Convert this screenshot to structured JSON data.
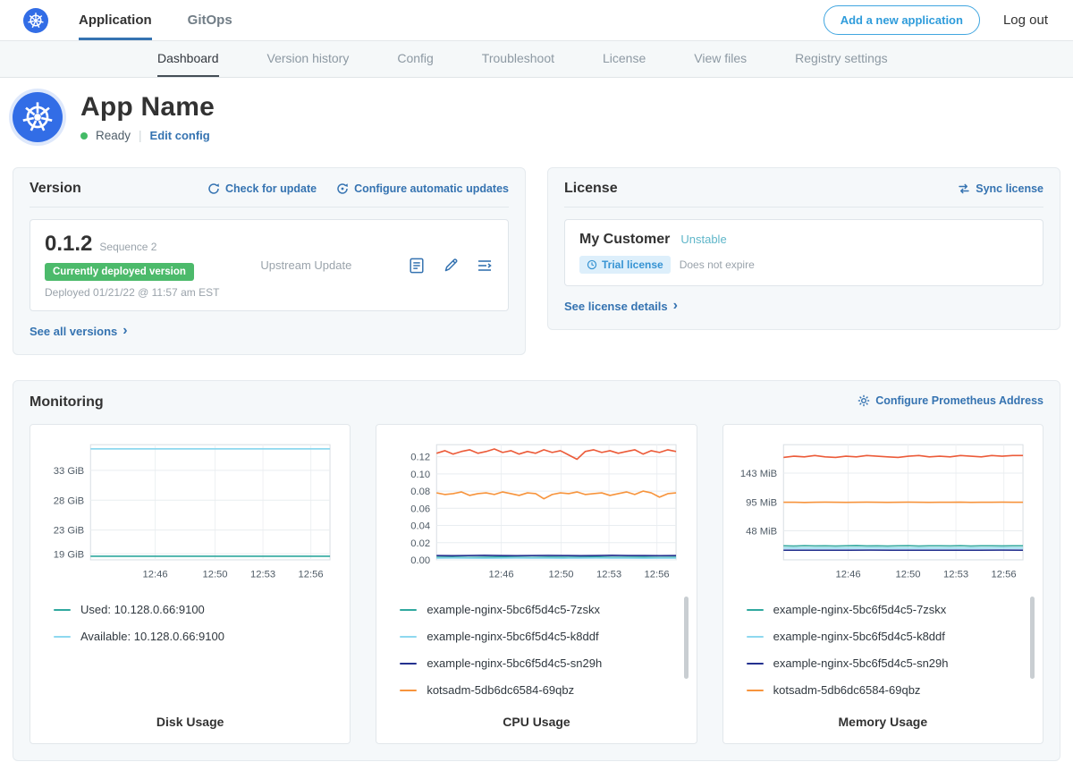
{
  "navbar": {
    "tabs": [
      {
        "label": "Application",
        "active": true
      },
      {
        "label": "GitOps",
        "active": false
      }
    ],
    "add_app_button": "Add a new application",
    "logout_label": "Log out"
  },
  "subnav": {
    "items": [
      {
        "label": "Dashboard",
        "active": true
      },
      {
        "label": "Version history"
      },
      {
        "label": "Config"
      },
      {
        "label": "Troubleshoot"
      },
      {
        "label": "License"
      },
      {
        "label": "View files"
      },
      {
        "label": "Registry settings"
      }
    ]
  },
  "app_header": {
    "title": "App Name",
    "status": "Ready",
    "edit_config_link": "Edit config"
  },
  "version_card": {
    "title": "Version",
    "check_for_update_link": "Check for update",
    "configure_updates_link": "Configure automatic updates",
    "version_number": "0.1.2",
    "sequence_label": "Sequence 2",
    "deployed_badge": "Currently deployed version",
    "deployed_timestamp": "Deployed 01/21/22 @ 11:57 am EST",
    "upstream_label": "Upstream Update",
    "see_all_versions_link": "See all versions"
  },
  "license_card": {
    "title": "License",
    "sync_license_link": "Sync license",
    "customer_name": "My Customer",
    "channel": "Unstable",
    "license_type_badge": "Trial license",
    "expiry_text": "Does not expire",
    "see_details_link": "See license details"
  },
  "monitoring": {
    "title": "Monitoring",
    "configure_link": "Configure Prometheus Address"
  },
  "icons": {
    "chevron_right": "›"
  },
  "colors": {
    "brand_blue": "#326de6",
    "link_blue": "#3573b1",
    "button_blue": "#2f9cdb",
    "status_green": "#44bb66",
    "badge_green": "#4cba6b",
    "channel_teal": "#5fb6c9",
    "trial_badge_bg": "#ddeffb",
    "trial_badge_text": "#3693d3"
  },
  "chart_data": [
    {
      "type": "line",
      "title": "Disk Usage",
      "ylim": [
        18,
        37.3
      ],
      "yticks": [
        {
          "v": 33,
          "label": "33 GiB"
        },
        {
          "v": 28,
          "label": "28 GiB"
        },
        {
          "v": 23,
          "label": "23 GiB"
        },
        {
          "v": 19,
          "label": "19 GiB"
        }
      ],
      "xticks": [
        {
          "pos": 0.27,
          "label": "12:46"
        },
        {
          "pos": 0.52,
          "label": "12:50"
        },
        {
          "pos": 0.72,
          "label": "12:53"
        },
        {
          "pos": 0.92,
          "label": "12:56"
        }
      ],
      "series": [
        {
          "name": "Used: 10.128.0.66:9100",
          "color": "#2fa89e",
          "values": [
            18.62,
            18.6,
            18.61,
            18.6,
            18.62,
            18.61,
            18.6,
            18.62,
            18.61,
            18.6,
            18.61,
            18.62,
            18.6,
            18.61,
            18.6,
            18.62
          ]
        },
        {
          "name": "Available: 10.128.0.66:9100",
          "color": "#8ed8ef",
          "values": [
            36.6,
            36.6,
            36.6,
            36.6,
            36.6,
            36.6,
            36.6,
            36.6,
            36.6,
            36.6,
            36.6,
            36.6,
            36.6,
            36.6,
            36.6,
            36.6
          ]
        }
      ],
      "has_scrollbar": false
    },
    {
      "type": "line",
      "title": "CPU Usage",
      "ylim": [
        0,
        0.134
      ],
      "yticks": [
        {
          "v": 0.12,
          "label": "0.12"
        },
        {
          "v": 0.1,
          "label": "0.10"
        },
        {
          "v": 0.08,
          "label": "0.08"
        },
        {
          "v": 0.06,
          "label": "0.06"
        },
        {
          "v": 0.04,
          "label": "0.04"
        },
        {
          "v": 0.02,
          "label": "0.02"
        },
        {
          "v": 0.0,
          "label": "0.00"
        }
      ],
      "xticks": [
        {
          "pos": 0.27,
          "label": "12:46"
        },
        {
          "pos": 0.52,
          "label": "12:50"
        },
        {
          "pos": 0.72,
          "label": "12:53"
        },
        {
          "pos": 0.92,
          "label": "12:56"
        }
      ],
      "series": [
        {
          "name": "example-nginx-5bc6f5d4c5-7zskx",
          "color": "#2fa89e",
          "values": [
            0.003,
            0.0032,
            0.0028,
            0.003,
            0.0034,
            0.003,
            0.0028,
            0.0032,
            0.003,
            0.003,
            0.0034,
            0.0029,
            0.003,
            0.0032,
            0.0028,
            0.003
          ]
        },
        {
          "name": "example-nginx-5bc6f5d4c5-k8ddf",
          "color": "#8ed8ef",
          "values": [
            0.002,
            0.0021,
            0.002,
            0.0019,
            0.002,
            0.0021,
            0.002,
            0.002,
            0.0019,
            0.002,
            0.0021,
            0.002,
            0.002,
            0.0019,
            0.002,
            0.002
          ]
        },
        {
          "name": "example-nginx-5bc6f5d4c5-sn29h",
          "color": "#24318f",
          "values": [
            0.005,
            0.0048,
            0.005,
            0.0052,
            0.005,
            0.0049,
            0.005,
            0.0051,
            0.005,
            0.0048,
            0.005,
            0.0052,
            0.005,
            0.005,
            0.0049,
            0.005
          ]
        },
        {
          "name": "kotsadm-5db6dc6584-69qbz",
          "color": "#f7943c",
          "values": [
            0.078,
            0.076,
            0.077,
            0.079,
            0.075,
            0.077,
            0.078,
            0.076,
            0.079,
            0.077,
            0.075,
            0.078,
            0.077,
            0.071,
            0.076,
            0.078,
            0.077,
            0.079,
            0.076,
            0.077,
            0.078,
            0.075,
            0.077,
            0.079,
            0.076,
            0.08,
            0.078,
            0.073,
            0.077,
            0.078
          ]
        },
        {
          "name": "",
          "color": "#ec5b39",
          "values": [
            0.124,
            0.127,
            0.123,
            0.126,
            0.128,
            0.124,
            0.126,
            0.129,
            0.125,
            0.127,
            0.123,
            0.126,
            0.124,
            0.128,
            0.125,
            0.127,
            0.122,
            0.117,
            0.126,
            0.128,
            0.125,
            0.127,
            0.124,
            0.126,
            0.128,
            0.123,
            0.127,
            0.125,
            0.128,
            0.126
          ]
        }
      ],
      "has_scrollbar": true
    },
    {
      "type": "line",
      "title": "Memory Usage",
      "ylim": [
        0,
        190
      ],
      "yticks": [
        {
          "v": 143,
          "label": "143 MiB"
        },
        {
          "v": 95,
          "label": "95 MiB"
        },
        {
          "v": 48,
          "label": "48 MiB"
        }
      ],
      "xticks": [
        {
          "pos": 0.27,
          "label": "12:46"
        },
        {
          "pos": 0.52,
          "label": "12:50"
        },
        {
          "pos": 0.72,
          "label": "12:53"
        },
        {
          "pos": 0.92,
          "label": "12:56"
        }
      ],
      "series": [
        {
          "name": "example-nginx-5bc6f5d4c5-7zskx",
          "color": "#2fa89e",
          "values": [
            23,
            22.7,
            23.2,
            22.9,
            23.1,
            22.8,
            23,
            23.3,
            22.9,
            23.1,
            22.7,
            23,
            23.2,
            22.8,
            23,
            23.1,
            22.9,
            23.2,
            22.8,
            23,
            23.1,
            22.9,
            23,
            23
          ]
        },
        {
          "name": "example-nginx-5bc6f5d4c5-k8ddf",
          "color": "#8ed8ef",
          "values": [
            19.5,
            19.5,
            19.4,
            19.5,
            19.6,
            19.5,
            19.5,
            19.4,
            19.5,
            19.5,
            19.6,
            19.5
          ]
        },
        {
          "name": "example-nginx-5bc6f5d4c5-sn29h",
          "color": "#24318f",
          "values": [
            16,
            16,
            15.9,
            16,
            16.1,
            16,
            16,
            15.9,
            16,
            16,
            16.1,
            16
          ]
        },
        {
          "name": "kotsadm-5db6dc6584-69qbz",
          "color": "#f7943c",
          "values": [
            95,
            95,
            94.7,
            95,
            95.2,
            95,
            94.8,
            95,
            95.1,
            95,
            94.9,
            95,
            95.2,
            95,
            94.8,
            95,
            95,
            95.1,
            94.9,
            95,
            95,
            95.2,
            95,
            95
          ]
        },
        {
          "name": "",
          "color": "#ec5b39",
          "values": [
            169,
            171,
            170,
            172,
            170,
            169,
            171,
            170,
            172,
            171,
            170,
            169,
            171,
            172,
            170,
            171,
            170,
            172,
            171,
            170,
            172,
            171,
            172,
            172
          ]
        }
      ],
      "has_scrollbar": true
    }
  ]
}
